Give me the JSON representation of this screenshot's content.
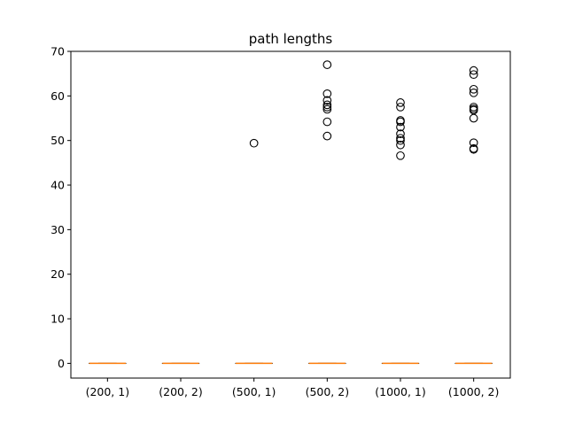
{
  "chart_data": {
    "type": "box",
    "title": "path lengths",
    "xlabel": "",
    "ylabel": "",
    "categories": [
      "(200, 1)",
      "(200, 2)",
      "(500, 1)",
      "(500, 2)",
      "(1000, 1)",
      "(1000, 2)"
    ],
    "ylim": [
      -3.3,
      70
    ],
    "yticks": [
      0,
      10,
      20,
      30,
      40,
      50,
      60,
      70
    ],
    "boxes": [
      {
        "category": "(200, 1)",
        "q1": 0,
        "median": 0,
        "q3": 0,
        "whisker_low": 0,
        "whisker_high": 0,
        "outliers": []
      },
      {
        "category": "(200, 2)",
        "q1": 0,
        "median": 0,
        "q3": 0,
        "whisker_low": 0,
        "whisker_high": 0,
        "outliers": []
      },
      {
        "category": "(500, 1)",
        "q1": 0,
        "median": 0,
        "q3": 0,
        "whisker_low": 0,
        "whisker_high": 0,
        "outliers": [
          49.4
        ]
      },
      {
        "category": "(500, 2)",
        "q1": 0,
        "median": 0,
        "q3": 0,
        "whisker_low": 0,
        "whisker_high": 0,
        "outliers": [
          67.0,
          60.5,
          59.0,
          58.0,
          57.5,
          57.0,
          54.2,
          51.0
        ]
      },
      {
        "category": "(1000, 1)",
        "q1": 0,
        "median": 0,
        "q3": 0,
        "whisker_low": 0,
        "whisker_high": 0,
        "outliers": [
          58.5,
          57.5,
          54.5,
          54.2,
          53.0,
          51.5,
          50.5,
          50.0,
          49.0,
          46.6
        ]
      },
      {
        "category": "(1000, 2)",
        "q1": 0,
        "median": 0,
        "q3": 0,
        "whisker_low": 0,
        "whisker_high": 0,
        "outliers": [
          65.7,
          64.8,
          61.5,
          60.7,
          57.5,
          57.1,
          56.8,
          55.0,
          49.5,
          48.2,
          48.0
        ]
      }
    ],
    "grid": false,
    "colors": {
      "box": "#000000",
      "median": "#ff7f0e",
      "outlier": "#000000"
    }
  }
}
